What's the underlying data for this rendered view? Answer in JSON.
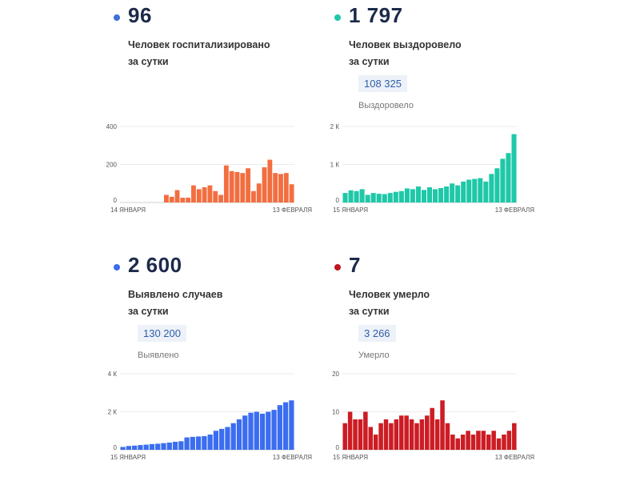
{
  "panels": [
    {
      "big_number": "96",
      "desc_line1": "Человек госпитализировано",
      "desc_line2": "за сутки",
      "color": "#f26e40",
      "dot_color": "#3f6fd9"
    },
    {
      "big_number": "1 797",
      "desc_line1": "Человек выздоровело",
      "desc_line2": "за сутки",
      "total_value": "108 325",
      "total_label": "Выздоровело",
      "color": "#1ec8a8",
      "dot_color": "#1ec8a8"
    },
    {
      "big_number": "2 600",
      "desc_line1": "Выявлено случаев",
      "desc_line2": "за сутки",
      "total_value": "130 200",
      "total_label": "Выявлено",
      "color": "#3b6df0",
      "dot_color": "#3b6df0"
    },
    {
      "big_number": "7",
      "desc_line1": "Человек умерло",
      "desc_line2": "за сутки",
      "total_value": "3 266",
      "total_label": "Умерло",
      "color": "#cc1c24",
      "dot_color": "#c0151e"
    }
  ],
  "chart_data": [
    {
      "type": "bar",
      "title": "Человек госпитализировано за сутки",
      "ylim": [
        0,
        400
      ],
      "yticks": [
        0,
        200,
        400
      ],
      "ytick_labels": [
        "0",
        "200",
        "400"
      ],
      "x_start_label": "14 ЯНВАРЯ",
      "x_end_label": "13 ФЕВРАЛЯ",
      "values": [
        0,
        0,
        0,
        0,
        0,
        0,
        0,
        0,
        40,
        30,
        65,
        25,
        25,
        90,
        70,
        80,
        90,
        60,
        40,
        195,
        165,
        160,
        155,
        180,
        60,
        100,
        185,
        225,
        155,
        150,
        155,
        96
      ]
    },
    {
      "type": "bar",
      "title": "Человек выздоровело за сутки",
      "ylim": [
        0,
        2000
      ],
      "yticks": [
        0,
        1000,
        2000
      ],
      "ytick_labels": [
        "0",
        "1 К",
        "2 К"
      ],
      "x_start_label": "15 ЯНВАРЯ",
      "x_end_label": "13 ФЕВРАЛЯ",
      "values": [
        250,
        320,
        300,
        350,
        200,
        250,
        230,
        220,
        250,
        280,
        300,
        370,
        350,
        420,
        330,
        400,
        350,
        380,
        420,
        500,
        450,
        550,
        600,
        620,
        640,
        550,
        750,
        900,
        1150,
        1300,
        1797
      ]
    },
    {
      "type": "bar",
      "title": "Выявлено случаев за сутки",
      "ylim": [
        0,
        4000
      ],
      "yticks": [
        0,
        2000,
        4000
      ],
      "ytick_labels": [
        "0",
        "2 К",
        "4 К"
      ],
      "x_start_label": "15 ЯНВАРЯ",
      "x_end_label": "13 ФЕВРАЛЯ",
      "values": [
        150,
        200,
        220,
        250,
        270,
        300,
        320,
        350,
        380,
        420,
        450,
        650,
        680,
        700,
        720,
        800,
        1000,
        1100,
        1200,
        1400,
        1600,
        1800,
        1950,
        2000,
        1900,
        2000,
        2100,
        2350,
        2500,
        2600
      ]
    },
    {
      "type": "bar",
      "title": "Человек умерло за сутки",
      "ylim": [
        0,
        20
      ],
      "yticks": [
        0,
        10,
        20
      ],
      "ytick_labels": [
        "0",
        "10",
        "20"
      ],
      "x_start_label": "15 ЯНВАРЯ",
      "x_end_label": "13 ФЕВРАЛЯ",
      "values": [
        7,
        10,
        8,
        8,
        10,
        6,
        4,
        7,
        8,
        7,
        8,
        9,
        9,
        8,
        7,
        8,
        9,
        11,
        8,
        13,
        7,
        4,
        3,
        4,
        5,
        4,
        5,
        5,
        4,
        5,
        3,
        4,
        5,
        7
      ]
    }
  ]
}
